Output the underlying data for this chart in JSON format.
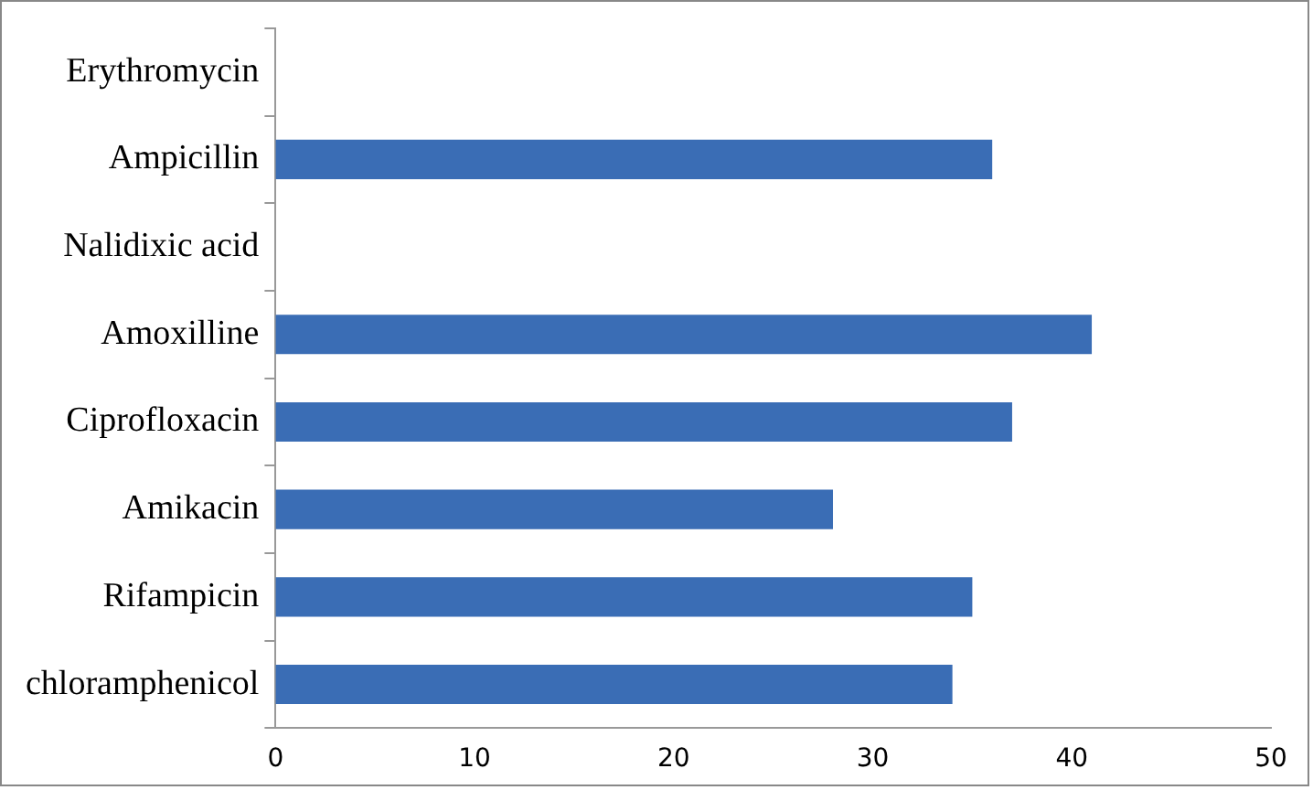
{
  "chart_data": {
    "type": "bar",
    "orientation": "horizontal",
    "categories": [
      "Erythromycin",
      "Ampicillin",
      "Nalidixic acid",
      "Amoxilline",
      "Ciprofloxacin",
      "Amikacin",
      "Rifampicin",
      "chloramphenicol"
    ],
    "values": [
      0,
      36,
      0,
      41,
      37,
      28,
      35,
      34
    ],
    "color": "#3a6db5",
    "xlim": [
      0,
      50
    ],
    "xticks": [
      0,
      10,
      20,
      30,
      40,
      50
    ],
    "grid": false,
    "legend": false
  }
}
